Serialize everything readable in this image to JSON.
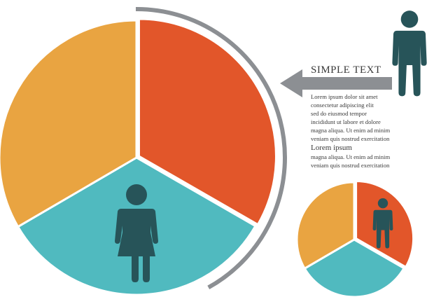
{
  "colors": {
    "orange": "#E2562A",
    "yellow": "#E9A441",
    "teal": "#50BABF",
    "figure": "#275459",
    "arc": "#8C8F93",
    "arrow": "#8C8F93"
  },
  "callout": {
    "heading": "SIMPLE TEXT",
    "lines": [
      "Lorem ipsum dolor sit amet",
      "consectetur adipiscing elit",
      "sed do eiusmod tempor",
      "incididunt ut labore et dolore",
      "magna aliqua. Ut enim ad minim",
      "veniam quis nostrud exercitation"
    ],
    "subheading": "Lorem ipsum",
    "lines2": [
      "magna aliqua. Ut enim ad minim",
      "veniam quis nostrud exercitation"
    ]
  },
  "icons": {
    "female": "female-person-icon",
    "male": "male-person-icon",
    "arrow": "left-arrow-icon"
  },
  "chart_data": [
    {
      "type": "pie",
      "slices": [
        {
          "color": "#E2562A",
          "fraction": 0.333
        },
        {
          "color": "#50BABF",
          "fraction": 0.333
        },
        {
          "color": "#E9A441",
          "fraction": 0.334
        }
      ]
    },
    {
      "type": "pie",
      "slices": [
        {
          "color": "#E2562A",
          "fraction": 0.333
        },
        {
          "color": "#50BABF",
          "fraction": 0.333
        },
        {
          "color": "#E9A441",
          "fraction": 0.334
        }
      ]
    }
  ]
}
